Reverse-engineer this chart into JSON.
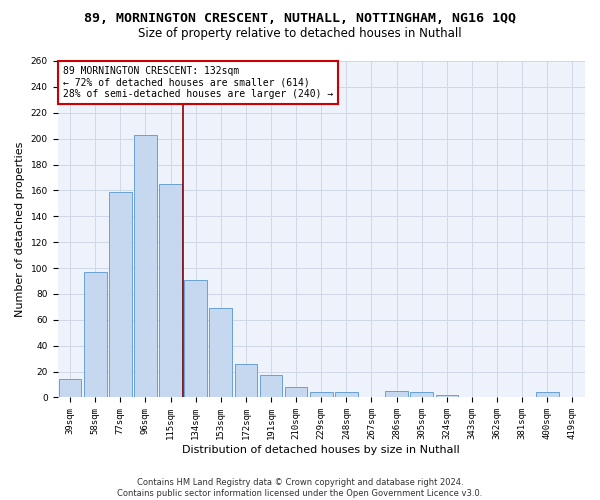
{
  "title_line1": "89, MORNINGTON CRESCENT, NUTHALL, NOTTINGHAM, NG16 1QQ",
  "title_line2": "Size of property relative to detached houses in Nuthall",
  "xlabel": "Distribution of detached houses by size in Nuthall",
  "ylabel": "Number of detached properties",
  "categories": [
    "39sqm",
    "58sqm",
    "77sqm",
    "96sqm",
    "115sqm",
    "134sqm",
    "153sqm",
    "172sqm",
    "191sqm",
    "210sqm",
    "229sqm",
    "248sqm",
    "267sqm",
    "286sqm",
    "305sqm",
    "324sqm",
    "343sqm",
    "362sqm",
    "381sqm",
    "400sqm",
    "419sqm"
  ],
  "values": [
    14,
    97,
    159,
    203,
    165,
    91,
    69,
    26,
    17,
    8,
    4,
    4,
    0,
    5,
    4,
    2,
    0,
    0,
    0,
    4,
    0
  ],
  "bar_color": "#c5d8f0",
  "bar_edge_color": "#6aa0d4",
  "vline_color": "#8b0000",
  "vline_x_index": 5,
  "annotation_text": "89 MORNINGTON CRESCENT: 132sqm\n← 72% of detached houses are smaller (614)\n28% of semi-detached houses are larger (240) →",
  "annotation_box_color": "#ffffff",
  "annotation_box_edge_color": "#cc0000",
  "ylim": [
    0,
    260
  ],
  "yticks": [
    0,
    20,
    40,
    60,
    80,
    100,
    120,
    140,
    160,
    180,
    200,
    220,
    240,
    260
  ],
  "grid_color": "#d0d8e8",
  "background_color": "#eef2fa",
  "footer_line1": "Contains HM Land Registry data © Crown copyright and database right 2024.",
  "footer_line2": "Contains public sector information licensed under the Open Government Licence v3.0.",
  "title_fontsize": 9.5,
  "subtitle_fontsize": 8.5,
  "axis_label_fontsize": 8,
  "tick_fontsize": 6.5,
  "footer_fontsize": 6,
  "annotation_fontsize": 7
}
